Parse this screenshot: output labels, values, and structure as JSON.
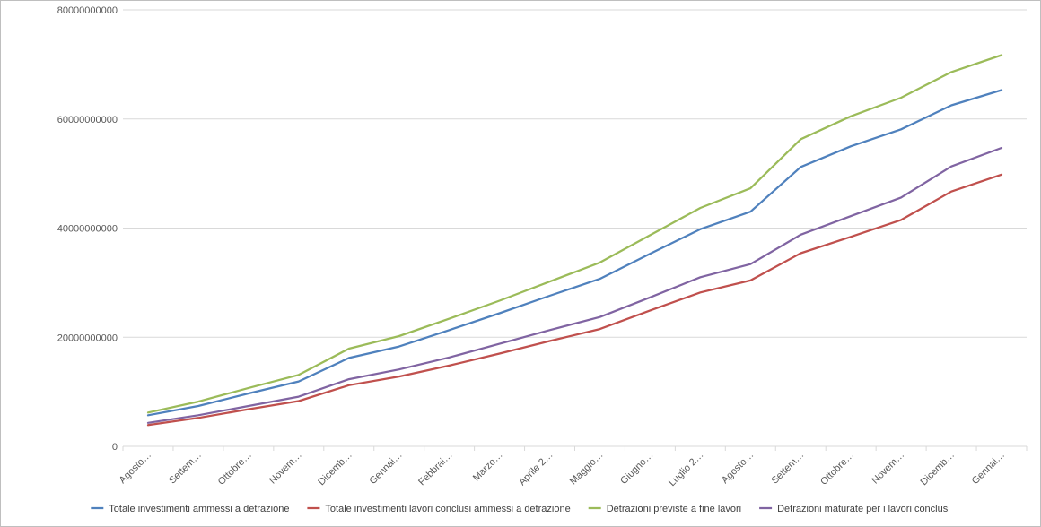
{
  "chart_data": {
    "type": "line",
    "title": "",
    "xlabel": "",
    "ylabel": "",
    "ylim": [
      0,
      80000000000
    ],
    "yticks": [
      0,
      20000000000,
      40000000000,
      60000000000,
      80000000000
    ],
    "ytick_labels": [
      "0",
      "20000000000",
      "40000000000",
      "60000000000",
      "80000000000"
    ],
    "grid": true,
    "legend_position": "bottom",
    "categories": [
      "Agosto…",
      "Settem…",
      "Ottobre…",
      "Novem…",
      "Dicemb…",
      "Gennai…",
      "Febbrai…",
      "Marzo…",
      "Aprile 2…",
      "Maggio…",
      "Giugno…",
      "Luglio 2…",
      "Agosto…",
      "Settem…",
      "Ottobre…",
      "Novem…",
      "Dicemb…",
      "Gennai…"
    ],
    "series": [
      {
        "name": "Totale investimenti ammessi a detrazione",
        "color": "#4f81bd",
        "values": [
          5700000000,
          7400000000,
          9700000000,
          11900000000,
          16200000000,
          18300000000,
          21300000000,
          24400000000,
          27600000000,
          30700000000,
          35300000000,
          39800000000,
          43000000000,
          51200000000,
          55000000000,
          58100000000,
          62500000000,
          65300000000
        ]
      },
      {
        "name": "Totale investimenti lavori conclusi ammessi a detrazione",
        "color": "#c0504d",
        "values": [
          3900000000,
          5200000000,
          6800000000,
          8300000000,
          11200000000,
          12800000000,
          14800000000,
          17000000000,
          19300000000,
          21500000000,
          24900000000,
          28200000000,
          30400000000,
          35400000000,
          38400000000,
          41500000000,
          46700000000,
          49800000000
        ]
      },
      {
        "name": "Detrazioni previste a fine lavori",
        "color": "#9bbb59",
        "values": [
          6200000000,
          8200000000,
          10700000000,
          13100000000,
          17900000000,
          20200000000,
          23400000000,
          26700000000,
          30200000000,
          33700000000,
          38700000000,
          43700000000,
          47300000000,
          56300000000,
          60500000000,
          63900000000,
          68600000000,
          71700000000
        ]
      },
      {
        "name": "Detrazioni maturate per i lavori conclusi",
        "color": "#8064a2",
        "values": [
          4300000000,
          5700000000,
          7400000000,
          9100000000,
          12300000000,
          14100000000,
          16300000000,
          18800000000,
          21300000000,
          23700000000,
          27300000000,
          31000000000,
          33400000000,
          38800000000,
          42200000000,
          45600000000,
          51300000000,
          54700000000
        ]
      }
    ]
  }
}
